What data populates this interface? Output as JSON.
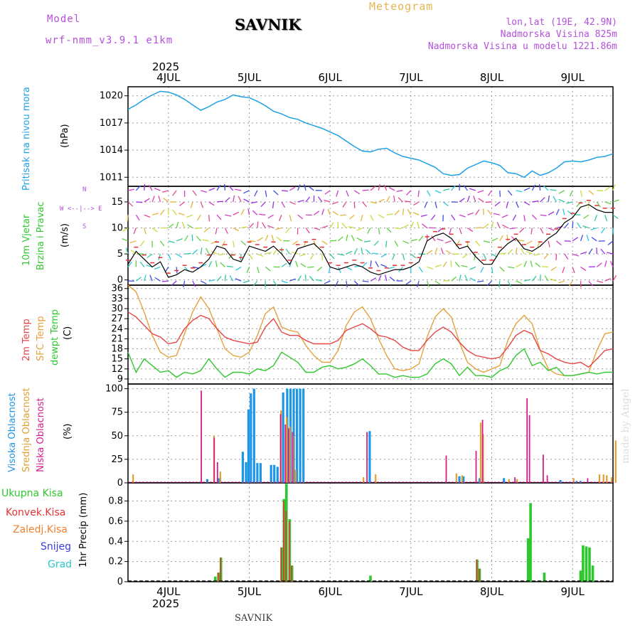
{
  "header": {
    "model_label": "Model",
    "model_name": "wrf-nmm_v3.9.1 e1km",
    "station": "SAVNIK",
    "meteogram": "Meteogram",
    "lonlat": "lon,lat (19E, 42.9N)",
    "elevation": "Nadmorska Visina 825m",
    "model_elevation": "Nadmorska Visina u modelu 1221.86m",
    "year_top": "2025",
    "year_bottom": "2025",
    "footer_station": "SAVNIK",
    "credit": "made by Angel"
  },
  "axis_labels": {
    "pressure": "Pritisak na nivou mora",
    "pressure_unit": "(hPa)",
    "wind_a": "10m Vjetar",
    "wind_b": "Brzina i Pravac",
    "wind_unit": "(m/s)",
    "wind_compass_n": "N",
    "wind_compass_we": "W <--|--> E",
    "wind_compass_s": "S",
    "temp_2m": "2m Temp",
    "temp_sfc": "SFC Temp",
    "temp_dew": "dewpt Temp",
    "temp_unit": "(C)",
    "cloud_high": "Visoka Oblacnost",
    "cloud_mid": "Srednja Oblacnost",
    "cloud_low": "Niska Oblacnost",
    "cloud_unit": "(%)",
    "precip_unit": "1hr Precip (mm)",
    "precip_total": "Ukupna Kisa",
    "precip_conv": "Konvek.Kisa",
    "precip_frz": "Zaledj.Kisa",
    "precip_snow": "Snijeg",
    "precip_hail": "Grad"
  },
  "colors": {
    "pressure": "#1ea0e6",
    "temp_2m": "#e64646",
    "temp_sfc": "#e6a03c",
    "temp_dew": "#2ec82e",
    "cloud_high": "#1e96e6",
    "cloud_mid": "#e0a030",
    "cloud_low": "#d21e8c",
    "precip_total": "#2ec82e",
    "precip_conv": "#e63232",
    "precip_frz": "#f08030",
    "precip_snow": "#3c3cdc",
    "precip_hail": "#28c8c8",
    "header_purple": "#b450dc",
    "header_orange": "#e6b450"
  },
  "chart_data": [
    {
      "type": "line",
      "title": "Pritisak na nivou mora",
      "ylabel": "(hPa)",
      "ylim": [
        1010,
        1021
      ],
      "yticks": [
        "1011",
        "1014",
        "1017",
        "1020"
      ],
      "xticks": [
        "4JUL",
        "5JUL",
        "6JUL",
        "7JUL",
        "8JUL",
        "9JUL"
      ],
      "x_days": [
        0,
        1,
        2,
        3,
        4,
        5
      ],
      "xlim_days": [
        -0.5,
        5.5
      ],
      "series": [
        {
          "name": "Pritisak na nivou mora",
          "x": [
            -0.5,
            -0.4,
            -0.3,
            -0.2,
            -0.1,
            0.0,
            0.1,
            0.2,
            0.3,
            0.4,
            0.5,
            0.6,
            0.7,
            0.8,
            0.9,
            1.0,
            1.1,
            1.2,
            1.3,
            1.4,
            1.5,
            1.6,
            1.7,
            1.8,
            1.9,
            2.0,
            2.1,
            2.2,
            2.3,
            2.4,
            2.5,
            2.6,
            2.7,
            2.8,
            2.9,
            3.0,
            3.1,
            3.2,
            3.3,
            3.4,
            3.5,
            3.6,
            3.7,
            3.8,
            3.9,
            4.0,
            4.1,
            4.2,
            4.3,
            4.4,
            4.5,
            4.6,
            4.7,
            4.8,
            4.9,
            5.0,
            5.1,
            5.2,
            5.3,
            5.4,
            5.5
          ],
          "values": [
            1018.5,
            1019.0,
            1019.6,
            1020.1,
            1020.5,
            1020.4,
            1020.1,
            1019.6,
            1019.0,
            1018.4,
            1018.8,
            1019.3,
            1019.6,
            1020.1,
            1019.9,
            1019.8,
            1019.4,
            1018.9,
            1018.3,
            1018.0,
            1017.6,
            1017.4,
            1017.0,
            1016.7,
            1016.4,
            1016.0,
            1015.6,
            1015.0,
            1014.4,
            1013.9,
            1013.8,
            1014.1,
            1014.2,
            1013.7,
            1013.3,
            1013.1,
            1012.9,
            1012.5,
            1012.1,
            1011.4,
            1011.2,
            1011.3,
            1012.0,
            1012.4,
            1012.8,
            1012.6,
            1012.3,
            1011.5,
            1011.4,
            1011.0,
            1011.7,
            1011.2,
            1011.5,
            1012.0,
            1012.7,
            1012.8,
            1012.7,
            1012.9,
            1013.2,
            1013.3,
            1013.6
          ]
        }
      ]
    },
    {
      "type": "line",
      "title": "10m Vjetar Brzina i Pravac",
      "ylabel": "(m/s)",
      "ylim": [
        -1,
        18
      ],
      "yticks": [
        "0",
        "5",
        "10",
        "15"
      ],
      "xlim_days": [
        -0.5,
        5.5
      ],
      "series": [
        {
          "name": "10m Vjetar",
          "x": [
            -0.5,
            -0.4,
            -0.3,
            -0.2,
            -0.1,
            0.0,
            0.1,
            0.2,
            0.3,
            0.4,
            0.5,
            0.6,
            0.7,
            0.8,
            0.9,
            1.0,
            1.1,
            1.2,
            1.3,
            1.4,
            1.5,
            1.6,
            1.7,
            1.8,
            1.9,
            2.0,
            2.1,
            2.2,
            2.3,
            2.4,
            2.5,
            2.6,
            2.7,
            2.8,
            2.9,
            3.0,
            3.1,
            3.2,
            3.3,
            3.4,
            3.5,
            3.6,
            3.7,
            3.8,
            3.9,
            4.0,
            4.1,
            4.2,
            4.3,
            4.4,
            4.5,
            4.6,
            4.7,
            4.8,
            4.9,
            5.0,
            5.1,
            5.2,
            5.3,
            5.4,
            5.5
          ],
          "values": [
            3.0,
            5.5,
            4.0,
            2.5,
            3.5,
            0.5,
            1.0,
            2.0,
            1.5,
            2.5,
            4.0,
            6.5,
            6.0,
            4.0,
            3.5,
            6.5,
            6.0,
            5.5,
            6.5,
            5.0,
            3.0,
            6.0,
            6.5,
            7.0,
            5.5,
            2.5,
            2.0,
            2.5,
            3.0,
            2.5,
            1.5,
            1.0,
            1.5,
            2.0,
            2.0,
            2.5,
            3.5,
            7.5,
            8.5,
            9.0,
            8.0,
            6.0,
            6.5,
            4.5,
            3.0,
            3.0,
            5.5,
            7.0,
            8.0,
            6.0,
            5.5,
            6.5,
            8.0,
            9.0,
            11.0,
            12.0,
            14.0,
            14.5,
            13.5,
            13.0,
            13.0
          ]
        }
      ]
    },
    {
      "type": "line",
      "title": "2m Temp / SFC Temp / dewpt Temp",
      "ylabel": "(C)",
      "ylim": [
        7.5,
        37
      ],
      "yticks": [
        "9",
        "12",
        "15",
        "18",
        "21",
        "24",
        "27",
        "30",
        "33",
        "36"
      ],
      "xlim_days": [
        -0.5,
        5.5
      ],
      "series": [
        {
          "name": "2m Temp",
          "x": [
            -0.5,
            -0.4,
            -0.3,
            -0.2,
            -0.1,
            0.0,
            0.1,
            0.2,
            0.3,
            0.4,
            0.5,
            0.6,
            0.7,
            0.8,
            0.9,
            1.0,
            1.1,
            1.2,
            1.3,
            1.4,
            1.5,
            1.6,
            1.7,
            1.8,
            1.9,
            2.0,
            2.1,
            2.2,
            2.3,
            2.4,
            2.5,
            2.6,
            2.7,
            2.8,
            2.9,
            3.0,
            3.1,
            3.2,
            3.3,
            3.4,
            3.5,
            3.6,
            3.7,
            3.8,
            3.9,
            4.0,
            4.1,
            4.2,
            4.3,
            4.4,
            4.5,
            4.6,
            4.7,
            4.8,
            4.9,
            5.0,
            5.1,
            5.2,
            5.3,
            5.4,
            5.5
          ],
          "values": [
            29,
            27.5,
            25,
            22.5,
            21.5,
            19.5,
            20,
            24,
            26.5,
            28,
            27,
            24,
            21.5,
            20.5,
            20,
            19.5,
            20,
            24.5,
            27,
            23,
            22,
            22,
            20.5,
            19.5,
            19.5,
            19.5,
            20.5,
            23.5,
            24.5,
            25.5,
            24,
            22,
            21.5,
            20.5,
            18.5,
            17.5,
            17.5,
            20.5,
            23,
            24.5,
            23,
            20,
            17.5,
            16,
            15.5,
            15,
            15.5,
            18.5,
            22,
            23.5,
            22.5,
            17.5,
            16.5,
            15,
            14,
            13.5,
            14,
            12.5,
            15,
            17.5,
            18
          ]
        },
        {
          "name": "SFC Temp",
          "x": [
            -0.5,
            -0.4,
            -0.3,
            -0.2,
            -0.1,
            0.0,
            0.1,
            0.2,
            0.3,
            0.4,
            0.5,
            0.6,
            0.7,
            0.8,
            0.9,
            1.0,
            1.1,
            1.2,
            1.3,
            1.4,
            1.5,
            1.6,
            1.7,
            1.8,
            1.9,
            2.0,
            2.1,
            2.2,
            2.3,
            2.4,
            2.5,
            2.6,
            2.7,
            2.8,
            2.9,
            3.0,
            3.1,
            3.2,
            3.3,
            3.4,
            3.5,
            3.6,
            3.7,
            3.8,
            3.9,
            4.0,
            4.1,
            4.2,
            4.3,
            4.4,
            4.5,
            4.6,
            4.7,
            4.8,
            4.9,
            5.0,
            5.1,
            5.2,
            5.3,
            5.4,
            5.5
          ],
          "values": [
            37,
            35,
            29,
            22,
            17,
            15.5,
            16,
            22.5,
            29,
            33.5,
            30,
            24,
            18,
            16,
            15.5,
            17,
            22,
            28.5,
            30.5,
            24.5,
            23.5,
            23,
            19,
            16,
            14,
            14,
            17.5,
            25,
            29,
            30.5,
            27,
            21,
            16,
            12,
            11.5,
            12,
            13.5,
            21.5,
            27.5,
            30,
            27.5,
            20,
            14,
            12,
            11,
            12,
            13,
            20.5,
            25.5,
            28,
            25.5,
            17.5,
            12,
            10.5,
            10,
            10,
            10.5,
            11,
            17.5,
            22.5,
            23
          ]
        },
        {
          "name": "dewpt Temp",
          "x": [
            -0.5,
            -0.4,
            -0.3,
            -0.2,
            -0.1,
            0.0,
            0.1,
            0.2,
            0.3,
            0.4,
            0.5,
            0.6,
            0.7,
            0.8,
            0.9,
            1.0,
            1.1,
            1.2,
            1.3,
            1.4,
            1.5,
            1.6,
            1.7,
            1.8,
            1.9,
            2.0,
            2.1,
            2.2,
            2.3,
            2.4,
            2.5,
            2.6,
            2.7,
            2.8,
            2.9,
            3.0,
            3.1,
            3.2,
            3.3,
            3.4,
            3.5,
            3.6,
            3.7,
            3.8,
            3.9,
            4.0,
            4.1,
            4.2,
            4.3,
            4.4,
            4.5,
            4.6,
            4.7,
            4.8,
            4.9,
            5.0,
            5.1,
            5.2,
            5.3,
            5.4,
            5.5
          ],
          "values": [
            17,
            11,
            15,
            13,
            11,
            11.5,
            9.5,
            11,
            10.5,
            11.5,
            15,
            12,
            9.5,
            11,
            11,
            10.5,
            12,
            11.5,
            13,
            17,
            15.5,
            14,
            11,
            11,
            12.5,
            13,
            12,
            12.5,
            13.5,
            15,
            13,
            10.5,
            10.5,
            9.5,
            10,
            9.5,
            9.5,
            10.5,
            13.5,
            15,
            13.5,
            10,
            12.5,
            10,
            10,
            9.5,
            11.5,
            12.5,
            16,
            18,
            13,
            14,
            11.5,
            12.5,
            10,
            10,
            10.5,
            11,
            10.5,
            11,
            11
          ]
        }
      ]
    },
    {
      "type": "bar",
      "title": "Visoka / Srednja / Niska Oblacnost",
      "ylabel": "(%)",
      "ylim": [
        0,
        105
      ],
      "yticks": [
        "0",
        "25",
        "50",
        "75",
        "100"
      ],
      "xlim_days": [
        -0.5,
        5.5
      ],
      "series": [
        {
          "name": "Visoka Oblacnost",
          "x": [
            0.48,
            0.62,
            0.92,
            0.96,
            0.99,
            1.02,
            1.06,
            1.1,
            1.14,
            1.27,
            1.31,
            1.35,
            1.42,
            1.47,
            1.51,
            1.55,
            1.59,
            1.63,
            1.67,
            2.49,
            3.6,
            3.65,
            3.85,
            4.15,
            4.85,
            5.05,
            5.1
          ],
          "values": [
            4,
            5,
            33,
            22,
            78,
            95,
            100,
            21,
            21,
            19,
            19,
            17,
            96,
            100,
            100,
            100,
            100,
            100,
            100,
            55,
            7,
            7,
            5,
            5,
            3,
            2,
            2
          ]
        },
        {
          "name": "Srednja Oblacnost",
          "x": [
            -0.45,
            0.55,
            0.63,
            1.38,
            1.45,
            1.49,
            1.53,
            1.56,
            2.4,
            2.55,
            3.55,
            3.62,
            3.85,
            3.88,
            4.2,
            4.3,
            5.0,
            5.32,
            5.37,
            5.41,
            5.47,
            5.52
          ],
          "values": [
            9,
            50,
            12,
            77,
            70,
            60,
            50,
            14,
            6,
            9,
            10,
            8,
            64,
            52,
            4,
            4,
            5,
            9,
            9,
            8,
            6,
            45
          ]
        },
        {
          "name": "Niska Oblacnost",
          "x": [
            0.42,
            0.58,
            0.62,
            1.4,
            1.46,
            1.5,
            1.55,
            2.47,
            3.45,
            3.82,
            3.9,
            4.3,
            4.45,
            4.48,
            4.65,
            4.7,
            5.2
          ],
          "values": [
            98,
            48,
            22,
            73,
            62,
            58,
            54,
            54,
            29,
            34,
            67,
            6,
            90,
            72,
            30,
            8,
            5
          ]
        }
      ]
    },
    {
      "type": "bar",
      "title": "1hr Precip",
      "ylabel": "1hr Precip (mm)",
      "ylim": [
        0,
        0.98
      ],
      "yticks": [
        "0",
        "0.2",
        "0.4",
        "0.6",
        "0.8"
      ],
      "xticks": [
        "4JUL",
        "5JUL",
        "6JUL",
        "7JUL",
        "8JUL",
        "9JUL"
      ],
      "xlim_days": [
        -0.5,
        5.5
      ],
      "series": [
        {
          "name": "Ukupna Kisa",
          "x": [
            0.58,
            0.62,
            0.65,
            1.4,
            1.43,
            1.46,
            1.5,
            1.53,
            2.5,
            3.82,
            3.85,
            4.45,
            4.48,
            4.65,
            5.1,
            5.13,
            5.17,
            5.21,
            5.25
          ],
          "values": [
            0.05,
            0.09,
            0.24,
            0.34,
            0.82,
            0.97,
            0.62,
            0.16,
            0.06,
            0.22,
            0.13,
            0.43,
            0.78,
            0.09,
            0.11,
            0.36,
            0.35,
            0.34,
            0.16
          ]
        },
        {
          "name": "Konvek.Kisa",
          "x": [
            0.62,
            0.65,
            1.4,
            1.43,
            1.46,
            1.5,
            1.53,
            3.82,
            3.85
          ],
          "values": [
            0.09,
            0.24,
            0.34,
            0.8,
            0.7,
            0.6,
            0.16,
            0.22,
            0.13
          ]
        }
      ]
    }
  ]
}
